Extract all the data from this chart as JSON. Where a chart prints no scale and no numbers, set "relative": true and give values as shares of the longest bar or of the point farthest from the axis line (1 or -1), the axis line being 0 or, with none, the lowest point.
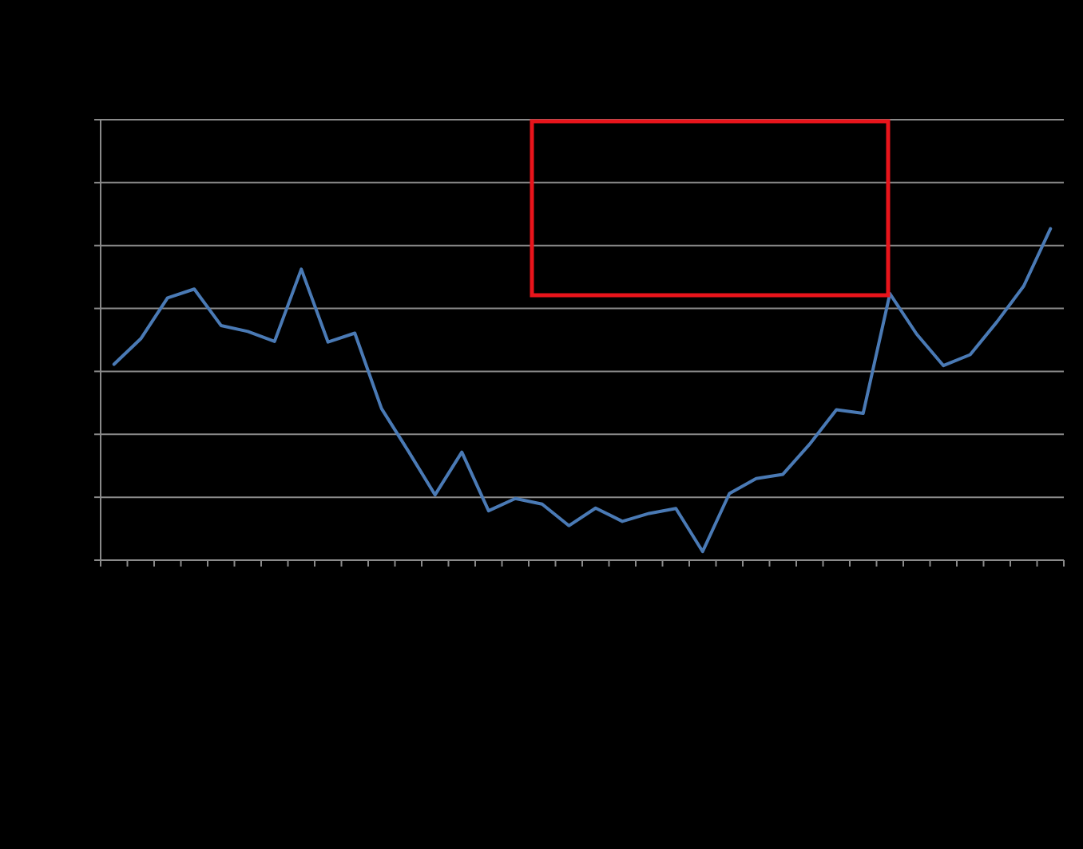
{
  "chart_data": {
    "type": "line",
    "relative": true,
    "grid": true,
    "marker": "none",
    "line_style": "solid",
    "categories": [
      null,
      null,
      null,
      null,
      null,
      null,
      null,
      null,
      null,
      null,
      null,
      null,
      null,
      null,
      null,
      null,
      null,
      null,
      null,
      null,
      null,
      null,
      null,
      null,
      null,
      null,
      null,
      null,
      null,
      null,
      null,
      null,
      null,
      null,
      null,
      null
    ],
    "series": [
      {
        "color": "#4a7ab5",
        "values": [
          0.591,
          0.668,
          0.791,
          0.818,
          0.708,
          0.69,
          0.66,
          0.878,
          0.658,
          0.685,
          0.457,
          0.329,
          0.197,
          0.326,
          0.149,
          0.186,
          0.169,
          0.104,
          0.157,
          0.117,
          0.141,
          0.156,
          0.026,
          0.201,
          0.246,
          0.259,
          0.35,
          0.454,
          0.443,
          0.804,
          0.682,
          0.587,
          0.62,
          0.719,
          0.827,
          1
        ]
      }
    ]
  }
}
